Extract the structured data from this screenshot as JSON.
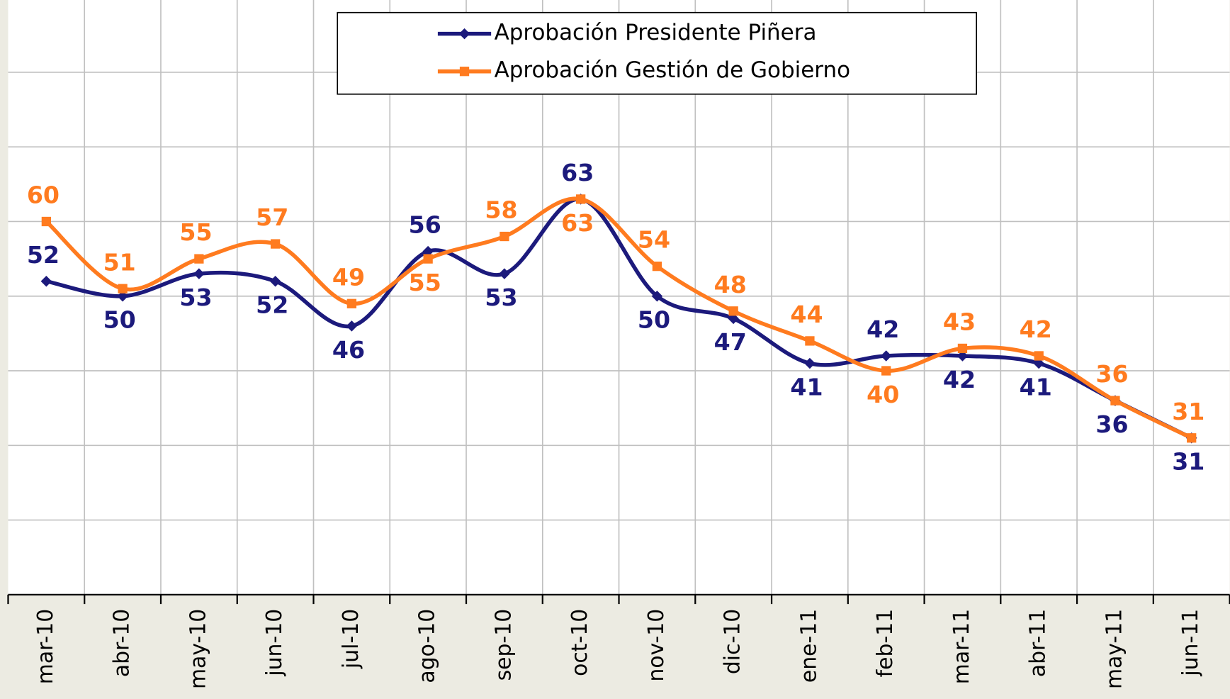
{
  "chart_data": {
    "type": "line",
    "categories": [
      "mar-10",
      "abr-10",
      "may-10",
      "jun-10",
      "jul-10",
      "ago-10",
      "sep-10",
      "oct-10",
      "nov-10",
      "dic-10",
      "ene-11",
      "feb-11",
      "mar-11",
      "abr-11",
      "may-11",
      "jun-11"
    ],
    "series": [
      {
        "name": "Aprobación Presidente Piñera",
        "color": "#1c1a7c",
        "marker": "diamond",
        "values": [
          52,
          50,
          53,
          52,
          46,
          56,
          53,
          63,
          50,
          47,
          41,
          42,
          42,
          41,
          36,
          31
        ]
      },
      {
        "name": "Aprobación Gestión de Gobierno",
        "color": "#ff7b1f",
        "marker": "square",
        "values": [
          60,
          51,
          55,
          57,
          49,
          55,
          58,
          63,
          54,
          48,
          44,
          40,
          43,
          42,
          36,
          31
        ]
      }
    ],
    "ylim": [
      10,
      90
    ],
    "yticks": [
      10,
      20,
      30,
      40,
      50,
      60,
      70,
      80,
      90
    ],
    "grid": true,
    "smooth": true,
    "legend": "top"
  }
}
